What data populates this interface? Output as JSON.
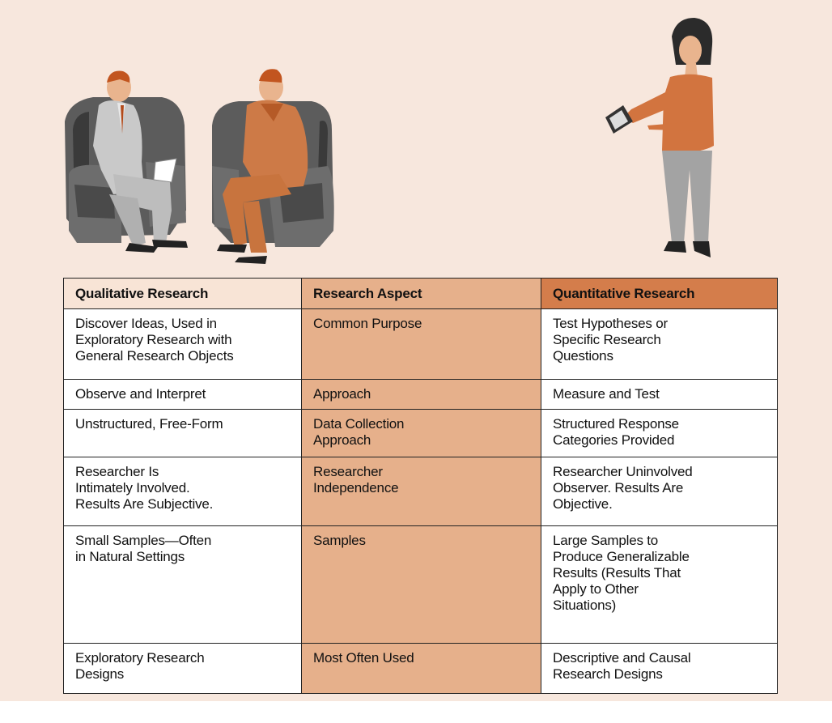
{
  "table": {
    "header": [
      "Qualitative Research",
      "Research Aspect",
      "Quantitative Research"
    ],
    "rows": [
      [
        [
          "Discover Ideas, Used in",
          "Exploratory Research with",
          "General Research Objects"
        ],
        [
          "Common Purpose"
        ],
        [
          "Test Hypotheses or",
          "Specific Research",
          "Questions"
        ]
      ],
      [
        [
          "Observe and Interpret"
        ],
        [
          "Approach"
        ],
        [
          "Measure and Test"
        ]
      ],
      [
        [
          "Unstructured, Free-Form"
        ],
        [
          "Data Collection",
          "Approach"
        ],
        [
          "Structured Response",
          "Categories Provided"
        ]
      ],
      [
        [
          "Researcher Is",
          "Intimately Involved.",
          "Results Are Subjective."
        ],
        [
          "Researcher",
          "Independence"
        ],
        [
          "Researcher Uninvolved",
          "Observer. Results Are",
          "Objective."
        ]
      ],
      [
        [
          "Small Samples—Often",
          "in Natural Settings"
        ],
        [
          "Samples"
        ],
        [
          "Large Samples to",
          "Produce Generalizable",
          "Results (Results That",
          "Apply to Other",
          "Situations)"
        ]
      ],
      [
        [
          "Exploratory Research",
          "Designs"
        ],
        [
          "Most Often Used"
        ],
        [
          "Descriptive and Causal",
          "Research Designs"
        ]
      ]
    ]
  }
}
